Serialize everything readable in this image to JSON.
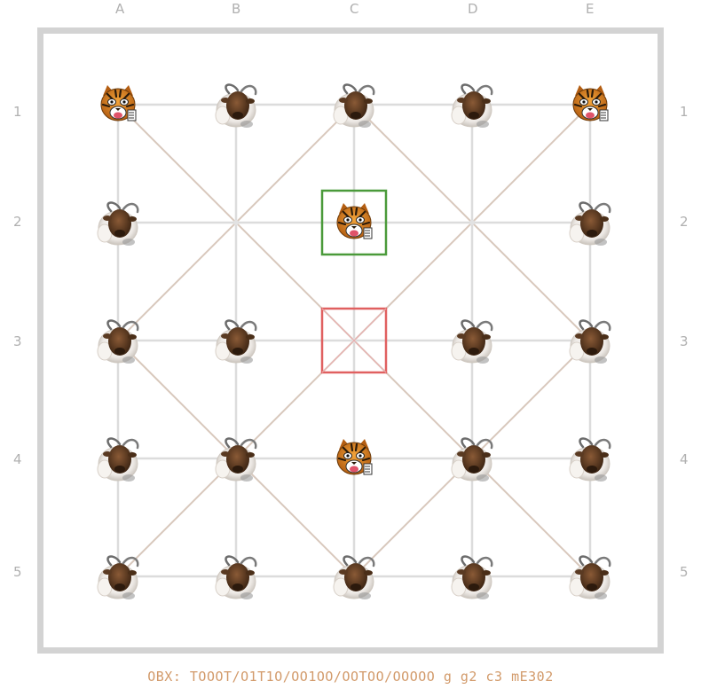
{
  "board": {
    "files": [
      "A",
      "B",
      "C",
      "D",
      "E"
    ],
    "ranks": [
      "1",
      "2",
      "3",
      "4",
      "5"
    ],
    "fen": "OBX: TOOOT/O1T1O/OO1OO/OOTOO/OOOOO g g2 c3 mE302"
  },
  "pieces": [
    {
      "file": 0,
      "rank": 0,
      "type": "tiger"
    },
    {
      "file": 1,
      "rank": 0,
      "type": "goat"
    },
    {
      "file": 2,
      "rank": 0,
      "type": "goat"
    },
    {
      "file": 3,
      "rank": 0,
      "type": "goat"
    },
    {
      "file": 4,
      "rank": 0,
      "type": "tiger"
    },
    {
      "file": 0,
      "rank": 1,
      "type": "goat"
    },
    {
      "file": 2,
      "rank": 1,
      "type": "tiger"
    },
    {
      "file": 4,
      "rank": 1,
      "type": "goat"
    },
    {
      "file": 0,
      "rank": 2,
      "type": "goat"
    },
    {
      "file": 1,
      "rank": 2,
      "type": "goat"
    },
    {
      "file": 3,
      "rank": 2,
      "type": "goat"
    },
    {
      "file": 4,
      "rank": 2,
      "type": "goat"
    },
    {
      "file": 0,
      "rank": 3,
      "type": "goat"
    },
    {
      "file": 1,
      "rank": 3,
      "type": "goat"
    },
    {
      "file": 2,
      "rank": 3,
      "type": "tiger"
    },
    {
      "file": 3,
      "rank": 3,
      "type": "goat"
    },
    {
      "file": 4,
      "rank": 3,
      "type": "goat"
    },
    {
      "file": 0,
      "rank": 4,
      "type": "goat"
    },
    {
      "file": 1,
      "rank": 4,
      "type": "goat"
    },
    {
      "file": 2,
      "rank": 4,
      "type": "goat"
    },
    {
      "file": 3,
      "rank": 4,
      "type": "goat"
    },
    {
      "file": 4,
      "rank": 4,
      "type": "goat"
    }
  ],
  "highlights": {
    "selected": {
      "file": 2,
      "rank": 1,
      "color": "#4a9a3a"
    },
    "target": {
      "file": 2,
      "rank": 2,
      "color": "#e06060"
    }
  },
  "colors": {
    "grid_line": "#dcdcdc",
    "diagonal_line": "#d8c8bc",
    "frame": "#d3d3d3",
    "coord_text": "#b0b0b0",
    "fen_text": "#d29a6a"
  },
  "icons": {
    "tiger": "tiger-icon",
    "goat": "goat-icon"
  }
}
